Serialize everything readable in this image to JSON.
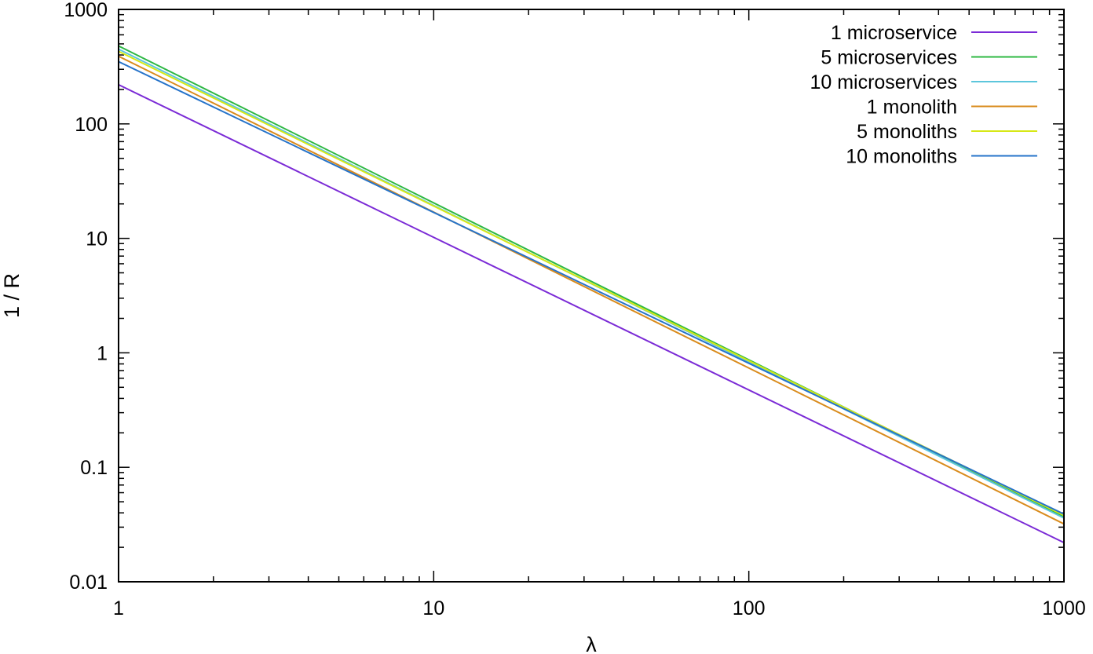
{
  "chart_data": {
    "type": "line",
    "title": "",
    "xlabel": "λ",
    "ylabel": "1 / R",
    "x_scale": "log",
    "y_scale": "log",
    "xlim": [
      1,
      1000
    ],
    "ylim": [
      0.01,
      1000
    ],
    "x_ticks": [
      "1",
      "10",
      "100",
      "1000"
    ],
    "y_ticks": [
      "0.01",
      "0.1",
      "1",
      "10",
      "100",
      "1000"
    ],
    "grid": false,
    "legend_position": "top-right",
    "series": [
      {
        "name": "1 microservice",
        "color": "#7b2bd6",
        "x": [
          1,
          1000
        ],
        "y": [
          220,
          0.022
        ]
      },
      {
        "name": "5 microservices",
        "color": "#2eb843",
        "x": [
          1,
          1000
        ],
        "y": [
          480,
          0.037
        ]
      },
      {
        "name": "10 microservices",
        "color": "#5cc6dc",
        "x": [
          1,
          1000
        ],
        "y": [
          450,
          0.036
        ]
      },
      {
        "name": "1 monolith",
        "color": "#d98b1c",
        "x": [
          1,
          1000
        ],
        "y": [
          390,
          0.032
        ]
      },
      {
        "name": "5 monoliths",
        "color": "#d7e816",
        "x": [
          1,
          1000
        ],
        "y": [
          430,
          0.038
        ]
      },
      {
        "name": "10 monoliths",
        "color": "#2673c9",
        "x": [
          1,
          1000
        ],
        "y": [
          350,
          0.039
        ]
      }
    ]
  }
}
